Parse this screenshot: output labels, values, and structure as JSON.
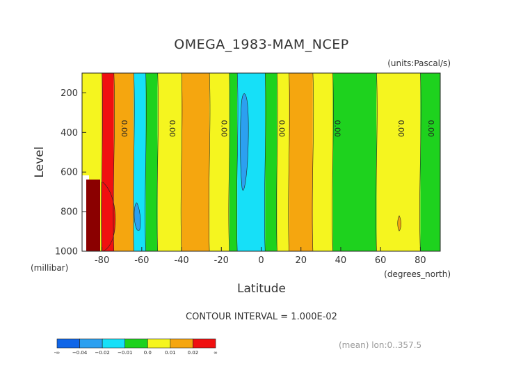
{
  "chart_data": {
    "type": "heatmap",
    "title": "OMEGA_1983-MAM_NCEP",
    "subtitle": "(units:Pascal/s)",
    "xlabel": "Latitude",
    "x_unit_label": "(degrees_north)",
    "ylabel": "Level",
    "y_unit_label": "(millibar)",
    "xlim": [
      -90,
      90
    ],
    "ylim": [
      1000,
      100
    ],
    "x_ticks": [
      -80,
      -60,
      -40,
      -20,
      0,
      20,
      40,
      60,
      80
    ],
    "y_ticks": [
      200,
      400,
      600,
      800,
      1000
    ],
    "contour_interval_text": "CONTOUR INTERVAL = 1.000E-02",
    "footer_text": "(mean) lon:0..357.5",
    "zero_contour_label": "0.00",
    "zero_contour_latitudes": [
      -70,
      -46,
      -20,
      9,
      37,
      69,
      84
    ],
    "legend": {
      "labels": [
        "-∞",
        "−0.04",
        "−0.02",
        "−0.01",
        "0.0",
        "0.01",
        "0.02",
        "∞"
      ],
      "colors": [
        "#0f65e8",
        "#2ca0f0",
        "#16e0f8",
        "#1ed21e",
        "#f5f51f",
        "#f5a60f",
        "#f01010"
      ]
    },
    "bands": [
      {
        "lat": [
          -90,
          -80
        ],
        "value": 0.005
      },
      {
        "lat": [
          -80,
          -74
        ],
        "value": 0.025
      },
      {
        "lat": [
          -74,
          -64
        ],
        "value": 0.015
      },
      {
        "lat": [
          -64,
          -58
        ],
        "value": -0.012
      },
      {
        "lat": [
          -58,
          -52
        ],
        "value": -0.005
      },
      {
        "lat": [
          -52,
          -40
        ],
        "value": 0.005
      },
      {
        "lat": [
          -40,
          -26
        ],
        "value": 0.015
      },
      {
        "lat": [
          -26,
          -16
        ],
        "value": 0.005
      },
      {
        "lat": [
          -16,
          -12
        ],
        "value": -0.005
      },
      {
        "lat": [
          -12,
          2
        ],
        "value": -0.012
      },
      {
        "lat": [
          2,
          8
        ],
        "value": -0.005
      },
      {
        "lat": [
          8,
          14
        ],
        "value": 0.005
      },
      {
        "lat": [
          14,
          26
        ],
        "value": 0.015
      },
      {
        "lat": [
          26,
          36
        ],
        "value": 0.005
      },
      {
        "lat": [
          36,
          58
        ],
        "value": -0.005
      },
      {
        "lat": [
          58,
          80
        ],
        "value": 0.005
      },
      {
        "lat": [
          80,
          90
        ],
        "value": -0.005
      }
    ]
  }
}
